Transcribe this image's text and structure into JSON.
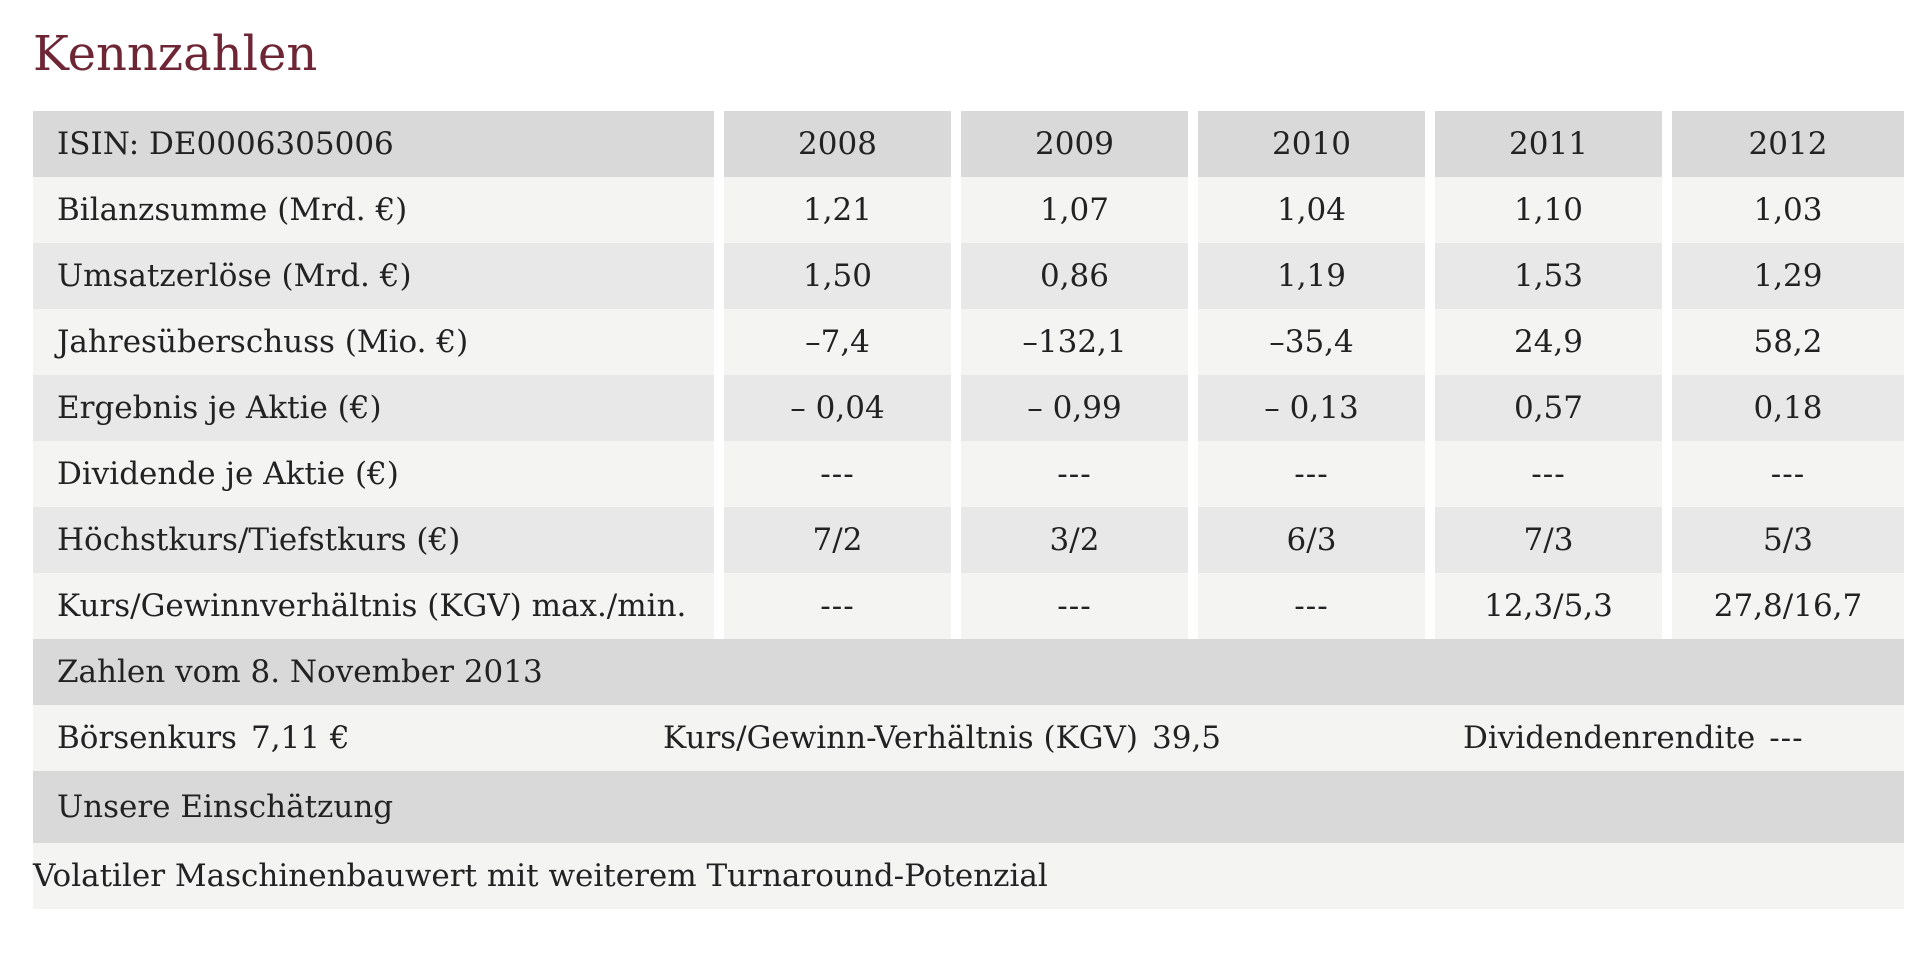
{
  "title": "Kennzahlen",
  "table": {
    "header": {
      "label": "ISIN: DE0006305006",
      "years": [
        "2008",
        "2009",
        "2010",
        "2011",
        "2012"
      ]
    },
    "rows": [
      {
        "label": "Bilanzsumme (Mrd. €)",
        "values": [
          "1,21",
          "1,07",
          "1,04",
          "1,10",
          "1,03"
        ]
      },
      {
        "label": "Umsatzerlöse (Mrd. €)",
        "values": [
          "1,50",
          "0,86",
          "1,19",
          "1,53",
          "1,29"
        ]
      },
      {
        "label": "Jahresüberschuss (Mio. €)",
        "values": [
          "–7,4",
          "–132,1",
          "–35,4",
          "24,9",
          "58,2"
        ]
      },
      {
        "label": "Ergebnis je Aktie (€)",
        "values": [
          "– 0,04",
          "– 0,99",
          "– 0,13",
          "0,57",
          "0,18"
        ]
      },
      {
        "label": "Dividende je Aktie (€)",
        "values": [
          "---",
          "---",
          "---",
          "---",
          "---"
        ]
      },
      {
        "label": "Höchstkurs/Tiefstkurs (€)",
        "values": [
          "7/2",
          "3/2",
          "6/3",
          "7/3",
          "5/3"
        ]
      },
      {
        "label": "Kurs/Gewinnverhältnis (KGV) max./min.",
        "values": [
          "---",
          "---",
          "---",
          "12,3/5,3",
          "27,8/16,7"
        ]
      }
    ]
  },
  "snapshot": {
    "heading": "Zahlen vom 8. November 2013",
    "boersenkurs": {
      "label": "Börsenkurs",
      "value": "7,11 €"
    },
    "kgv": {
      "label": "Kurs/Gewinn-Verhältnis (KGV)",
      "value": "39,5"
    },
    "dividendenrendite": {
      "label": "Dividendenrendite",
      "value": "---"
    }
  },
  "assessment": {
    "heading": "Unsere Einschätzung",
    "text": "Volatiler Maschinenbauwert mit weiterem Turnaround-Potenzial"
  },
  "colors": {
    "title": "#6e2534",
    "header_bg": "#d9d9d9",
    "row_dark_bg": "#e8e8e8",
    "row_light_bg": "#f4f4f3"
  }
}
